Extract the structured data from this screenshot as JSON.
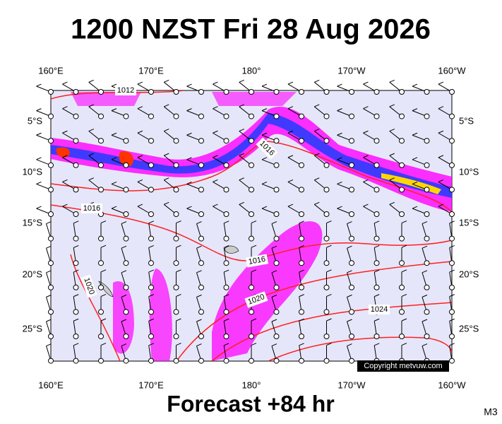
{
  "title": "1200 NZST Fri 28 Aug 2026",
  "footer": "Forecast +84 hr",
  "model_code": "M3",
  "copyright": "Copyright metvuw.com",
  "longitude_labels": [
    "160°E",
    "170°E",
    "180°",
    "170°W",
    "160°W"
  ],
  "latitude_labels": [
    "5°S",
    "10°S",
    "15°S",
    "20°S",
    "25°S"
  ],
  "isobar_labels": [
    "1012",
    "1016",
    "1016",
    "1016",
    "1020",
    "1020",
    "1024"
  ]
}
